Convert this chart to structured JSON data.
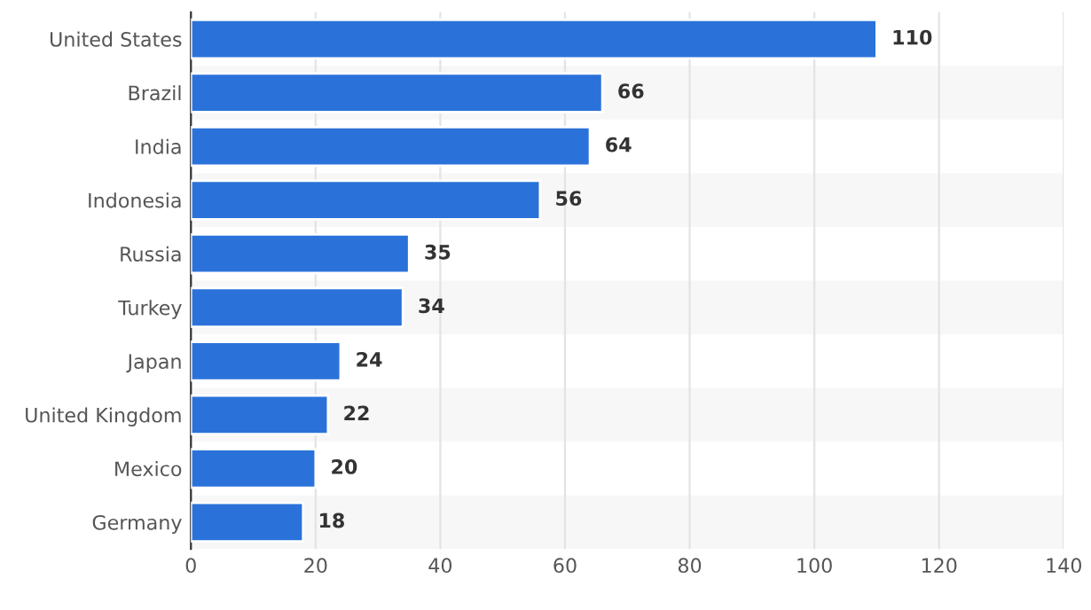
{
  "chart_data": {
    "type": "bar",
    "orientation": "horizontal",
    "categories": [
      "United States",
      "Brazil",
      "India",
      "Indonesia",
      "Russia",
      "Turkey",
      "Japan",
      "United Kingdom",
      "Mexico",
      "Germany"
    ],
    "values": [
      110,
      66,
      64,
      56,
      35,
      34,
      24,
      22,
      20,
      18
    ],
    "color": "#2a72d9",
    "xlim": [
      0,
      140
    ],
    "xticks": [
      0,
      20,
      40,
      60,
      80,
      100,
      120,
      140
    ],
    "grid": "x",
    "data_labels": true
  }
}
